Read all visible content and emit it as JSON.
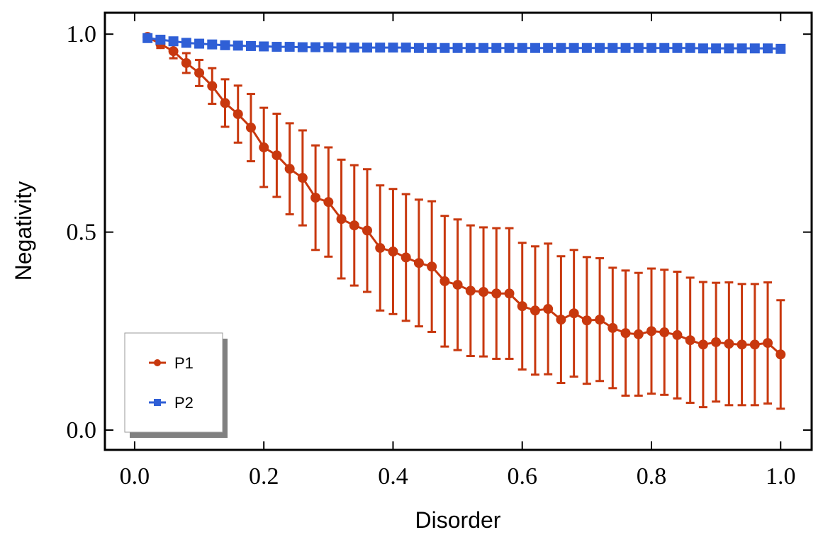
{
  "chart_data": {
    "type": "line",
    "x_label": "Disorder",
    "y_label": "Negativity",
    "x": [
      0.02,
      0.04,
      0.06,
      0.08,
      0.1,
      0.12,
      0.14,
      0.16,
      0.18,
      0.2,
      0.22,
      0.24,
      0.26,
      0.28,
      0.3,
      0.32,
      0.34,
      0.36,
      0.38,
      0.4,
      0.42,
      0.44,
      0.46,
      0.48,
      0.5,
      0.52,
      0.54,
      0.56,
      0.58,
      0.6,
      0.62,
      0.64,
      0.66,
      0.68,
      0.7,
      0.72,
      0.74,
      0.76,
      0.78,
      0.8,
      0.82,
      0.84,
      0.86,
      0.88,
      0.9,
      0.92,
      0.94,
      0.96,
      0.98,
      1.0
    ],
    "series": [
      {
        "name": "P1",
        "color": "#c8380e",
        "marker": "circle",
        "values": [
          0.993,
          0.975,
          0.957,
          0.927,
          0.902,
          0.869,
          0.826,
          0.798,
          0.764,
          0.714,
          0.694,
          0.66,
          0.637,
          0.587,
          0.576,
          0.533,
          0.517,
          0.504,
          0.46,
          0.451,
          0.436,
          0.422,
          0.413,
          0.376,
          0.367,
          0.352,
          0.349,
          0.345,
          0.345,
          0.313,
          0.302,
          0.306,
          0.279,
          0.295,
          0.277,
          0.279,
          0.258,
          0.245,
          0.242,
          0.25,
          0.247,
          0.24,
          0.227,
          0.216,
          0.222,
          0.218,
          0.216,
          0.216,
          0.22,
          0.191
        ],
        "errors": [
          0.004,
          0.01,
          0.018,
          0.025,
          0.033,
          0.045,
          0.06,
          0.072,
          0.085,
          0.1,
          0.105,
          0.115,
          0.12,
          0.132,
          0.138,
          0.15,
          0.152,
          0.155,
          0.158,
          0.158,
          0.16,
          0.16,
          0.165,
          0.165,
          0.165,
          0.165,
          0.163,
          0.165,
          0.165,
          0.16,
          0.162,
          0.165,
          0.16,
          0.16,
          0.16,
          0.155,
          0.152,
          0.158,
          0.155,
          0.158,
          0.158,
          0.16,
          0.158,
          0.158,
          0.15,
          0.155,
          0.153,
          0.153,
          0.153,
          0.137
        ]
      },
      {
        "name": "P2",
        "color": "#2f5fd6",
        "marker": "square",
        "values": [
          0.99,
          0.986,
          0.982,
          0.978,
          0.976,
          0.974,
          0.972,
          0.971,
          0.97,
          0.969,
          0.968,
          0.968,
          0.967,
          0.967,
          0.967,
          0.966,
          0.966,
          0.966,
          0.966,
          0.966,
          0.966,
          0.965,
          0.965,
          0.965,
          0.965,
          0.965,
          0.965,
          0.965,
          0.965,
          0.965,
          0.965,
          0.965,
          0.965,
          0.965,
          0.965,
          0.965,
          0.965,
          0.965,
          0.965,
          0.965,
          0.965,
          0.965,
          0.965,
          0.964,
          0.964,
          0.964,
          0.964,
          0.964,
          0.964,
          0.963
        ]
      }
    ],
    "xlim": [
      -0.046,
      1.048
    ],
    "ylim": [
      -0.05,
      1.054
    ],
    "xticks": [
      {
        "value": 0,
        "label": "0.0"
      },
      0.2,
      0.4,
      0.6,
      0.8,
      {
        "value": 1,
        "label": "1.0"
      }
    ],
    "yticks": [
      {
        "value": 0,
        "label": "0.0"
      },
      0.5,
      {
        "value": 1,
        "label": "1.0"
      }
    ],
    "legend": "lower left",
    "grid": false
  }
}
